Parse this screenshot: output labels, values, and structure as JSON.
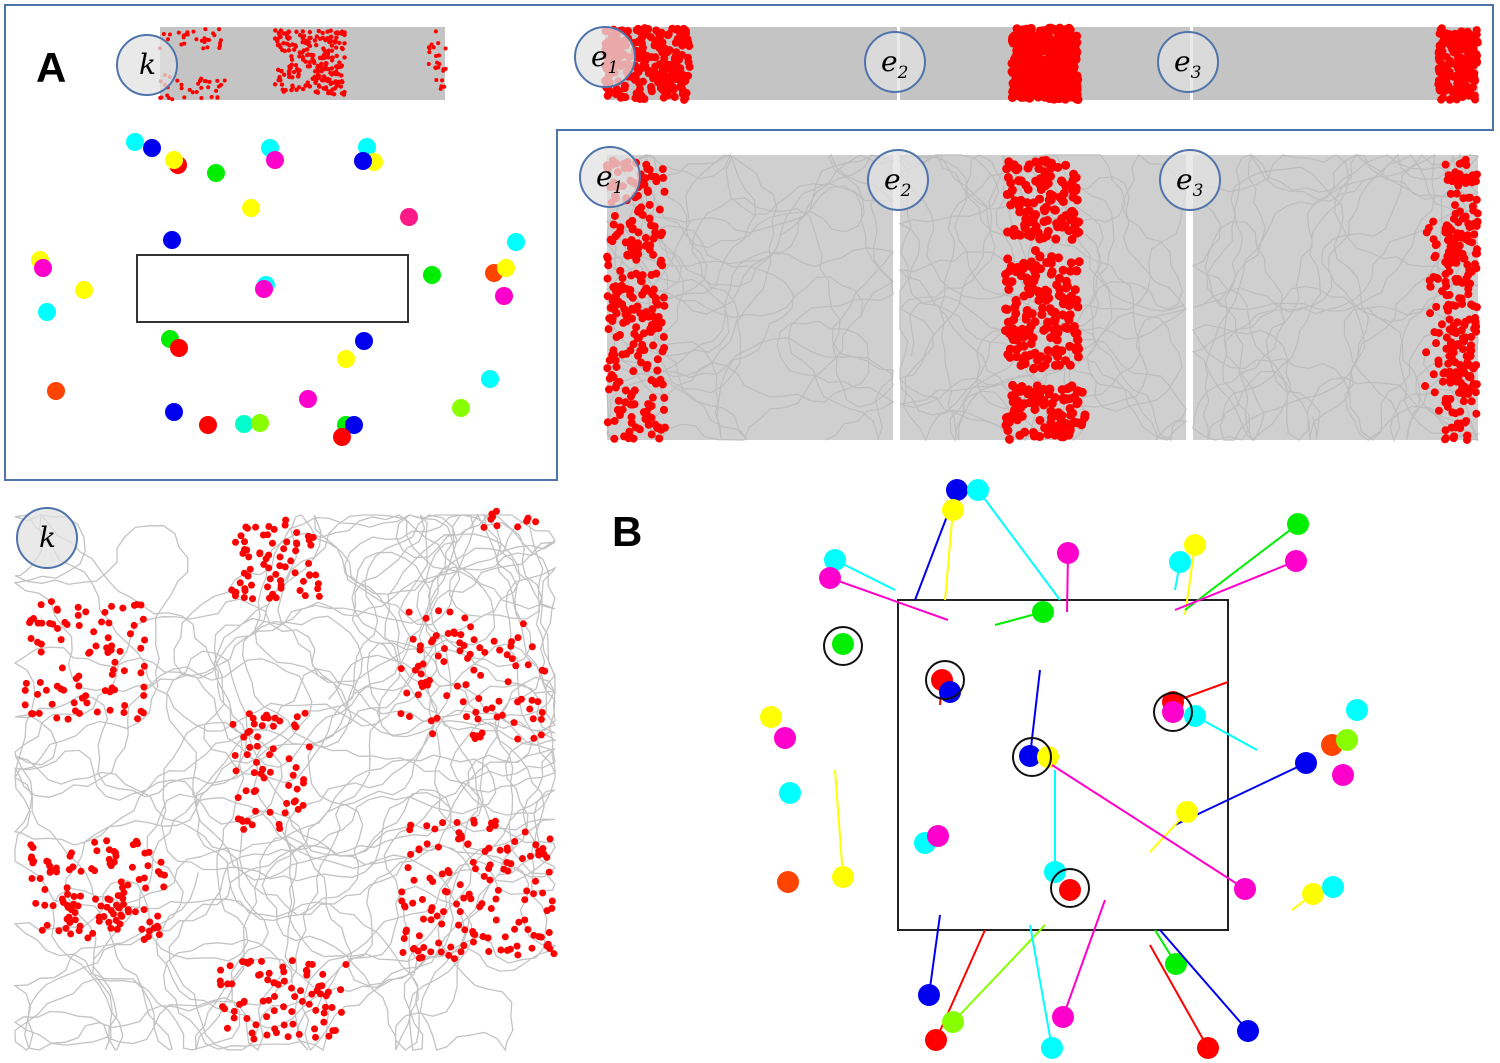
{
  "panels": {
    "a": {
      "label": "A",
      "track_cue": "k",
      "track_segments": [
        {
          "main": "e",
          "sub": "1"
        },
        {
          "main": "e",
          "sub": "2"
        },
        {
          "main": "e",
          "sub": "3"
        }
      ],
      "box_segments": [
        {
          "main": "e",
          "sub": "1"
        },
        {
          "main": "e",
          "sub": "2"
        },
        {
          "main": "e",
          "sub": "3"
        }
      ],
      "arena_cue": "k"
    },
    "b": {
      "label": "B"
    }
  }
}
